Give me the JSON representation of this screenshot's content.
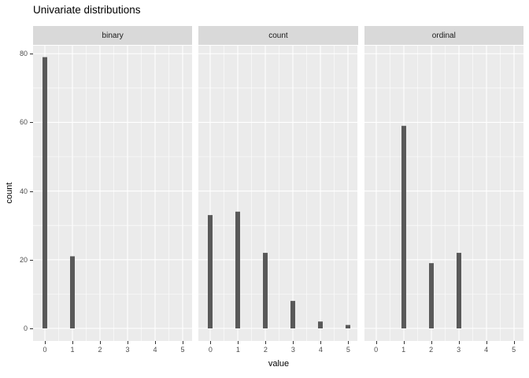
{
  "chart_data": {
    "type": "bar",
    "title": "Univariate distributions",
    "xlabel": "value",
    "ylabel": "count",
    "facets": [
      {
        "label": "binary",
        "categories": [
          0,
          1
        ],
        "values": [
          79,
          21
        ]
      },
      {
        "label": "count",
        "categories": [
          0,
          1,
          2,
          3,
          4,
          5
        ],
        "values": [
          33,
          34,
          22,
          8,
          2,
          1
        ]
      },
      {
        "label": "ordinal",
        "categories": [
          1,
          2,
          3
        ],
        "values": [
          59,
          19,
          22
        ]
      }
    ],
    "x_ticks": [
      0,
      1,
      2,
      3,
      4,
      5
    ],
    "y_ticks": [
      0,
      20,
      40,
      60,
      80
    ],
    "x_minor_ticks": [
      0.5,
      1.5,
      2.5,
      3.5,
      4.5
    ],
    "y_minor_ticks": [
      10,
      30,
      50,
      70
    ],
    "xlim": [
      -0.4,
      5.4
    ],
    "ylim": [
      0,
      82
    ],
    "grid": true,
    "legend": "none",
    "colors": {
      "bar": "#595959",
      "panel_background": "#ebebeb",
      "strip_background": "#d9d9d9",
      "grid": "#ffffff",
      "tick_text": "#4d4d4d",
      "strip_text": "#1a1a1a",
      "title_text": "#000000",
      "tick_mark": "#333333"
    }
  }
}
